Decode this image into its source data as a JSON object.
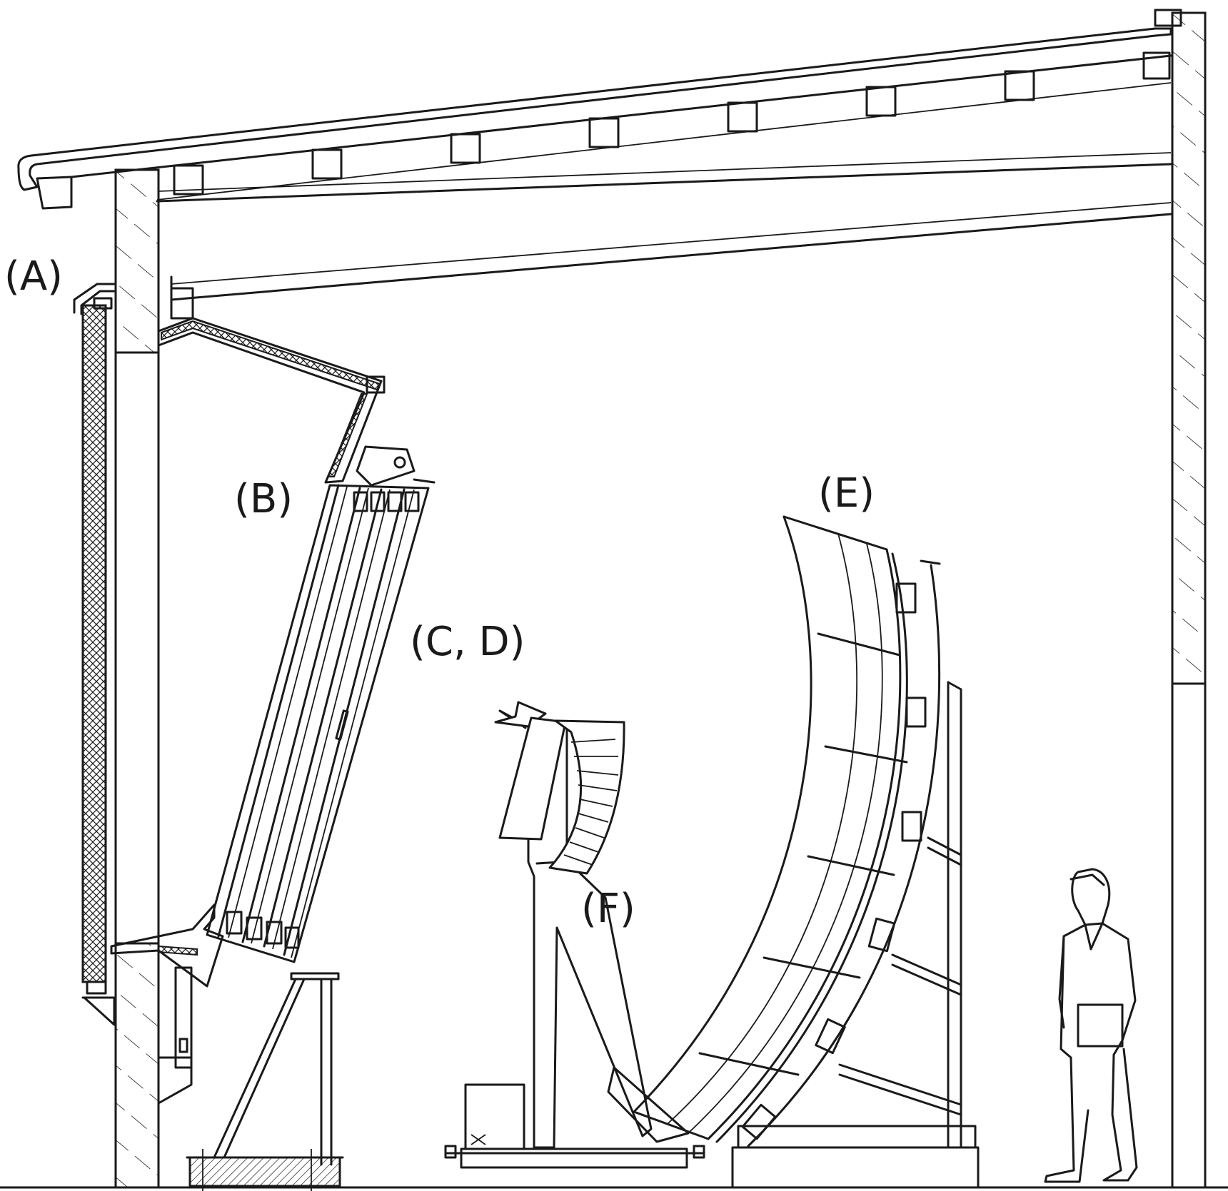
{
  "labels": {
    "a": "(A)",
    "b": "(B)",
    "cd": "(C, D)",
    "e": "(E)",
    "f": "(F)"
  },
  "colors": {
    "line": "#1a1a1a",
    "background": "#ffffff"
  }
}
